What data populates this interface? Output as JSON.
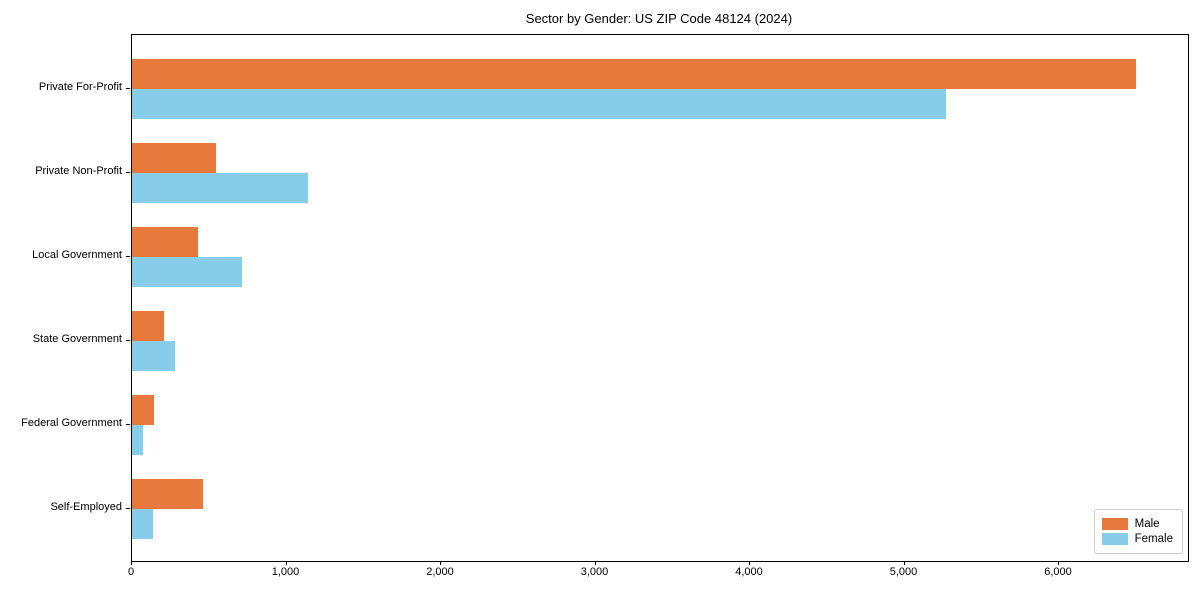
{
  "chart_data": {
    "type": "bar",
    "orientation": "horizontal",
    "title": "Sector by Gender: US ZIP Code 48124 (2024)",
    "categories": [
      "Private For-Profit",
      "Private Non-Profit",
      "Local Government",
      "State Government",
      "Federal Government",
      "Self-Employed"
    ],
    "series": [
      {
        "name": "Male",
        "color": "#e8793d",
        "values": [
          6500,
          545,
          430,
          205,
          140,
          460
        ]
      },
      {
        "name": "Female",
        "color": "#87cdea",
        "values": [
          5270,
          1140,
          710,
          280,
          70,
          135
        ]
      }
    ],
    "xlim": [
      0,
      6835
    ],
    "xticks": [
      0,
      1000,
      2000,
      3000,
      4000,
      5000,
      6000
    ],
    "xtick_labels": [
      "0",
      "1,000",
      "2,000",
      "3,000",
      "4,000",
      "5,000",
      "6,000"
    ],
    "xlabel": "",
    "ylabel": "",
    "grid": false,
    "legend_position": "lower right"
  },
  "legend": {
    "items": [
      {
        "label": "Male",
        "color": "#e8793d"
      },
      {
        "label": "Female",
        "color": "#87cdea"
      }
    ]
  }
}
